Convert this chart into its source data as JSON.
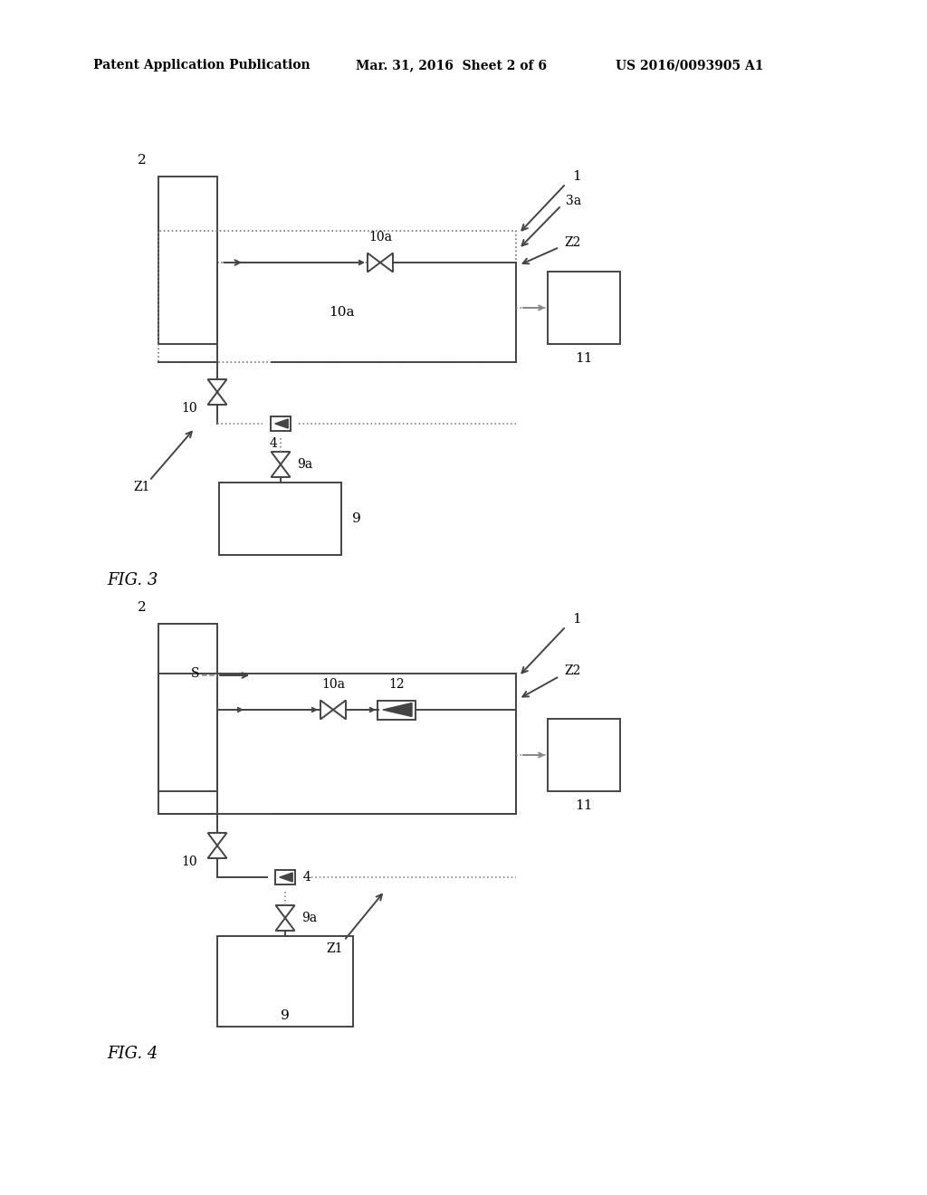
{
  "bg_color": "#ffffff",
  "header_left": "Patent Application Publication",
  "header_mid": "Mar. 31, 2016  Sheet 2 of 6",
  "header_right": "US 2016/0093905 A1",
  "fig3_label": "FIG. 3",
  "fig4_label": "FIG. 4",
  "lc": "#444444",
  "dc": "#888888",
  "tc": "#000000"
}
